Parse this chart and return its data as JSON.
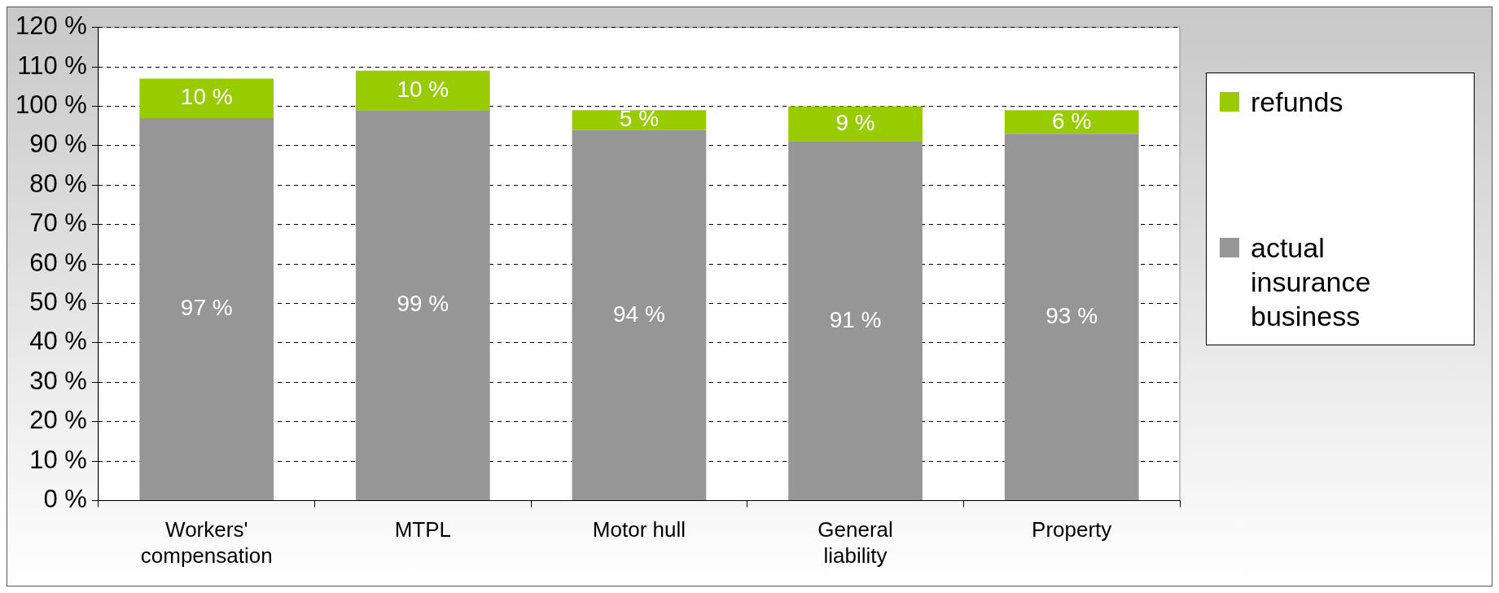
{
  "chart_data": {
    "type": "bar",
    "stacked": true,
    "categories": [
      "Workers' compensation",
      "MTPL",
      "Motor hull",
      "General liability",
      "Property"
    ],
    "series": [
      {
        "name": "actual insurance business",
        "color": "#969696",
        "values": [
          97,
          99,
          94,
          91,
          93
        ],
        "value_labels": [
          "97 %",
          "99 %",
          "94 %",
          "91 %",
          "93 %"
        ]
      },
      {
        "name": "refunds",
        "color": "#99cc00",
        "values": [
          10,
          10,
          5,
          9,
          6
        ],
        "value_labels": [
          "10 %",
          "10 %",
          "5 %",
          "9 %",
          "6 %"
        ]
      }
    ],
    "ylim": [
      0,
      120
    ],
    "yticks": [
      {
        "value": 0,
        "label": "0 %"
      },
      {
        "value": 10,
        "label": "10 %"
      },
      {
        "value": 20,
        "label": "20 %"
      },
      {
        "value": 30,
        "label": "30 %"
      },
      {
        "value": 40,
        "label": "40 %"
      },
      {
        "value": 50,
        "label": "50 %"
      },
      {
        "value": 60,
        "label": "60 %"
      },
      {
        "value": 70,
        "label": "70 %"
      },
      {
        "value": 80,
        "label": "80 %"
      },
      {
        "value": 90,
        "label": "90 %"
      },
      {
        "value": 100,
        "label": "100 %"
      },
      {
        "value": 110,
        "label": "110 %"
      },
      {
        "value": 120,
        "label": "120 %"
      }
    ],
    "grid": "y",
    "legend": "right"
  }
}
